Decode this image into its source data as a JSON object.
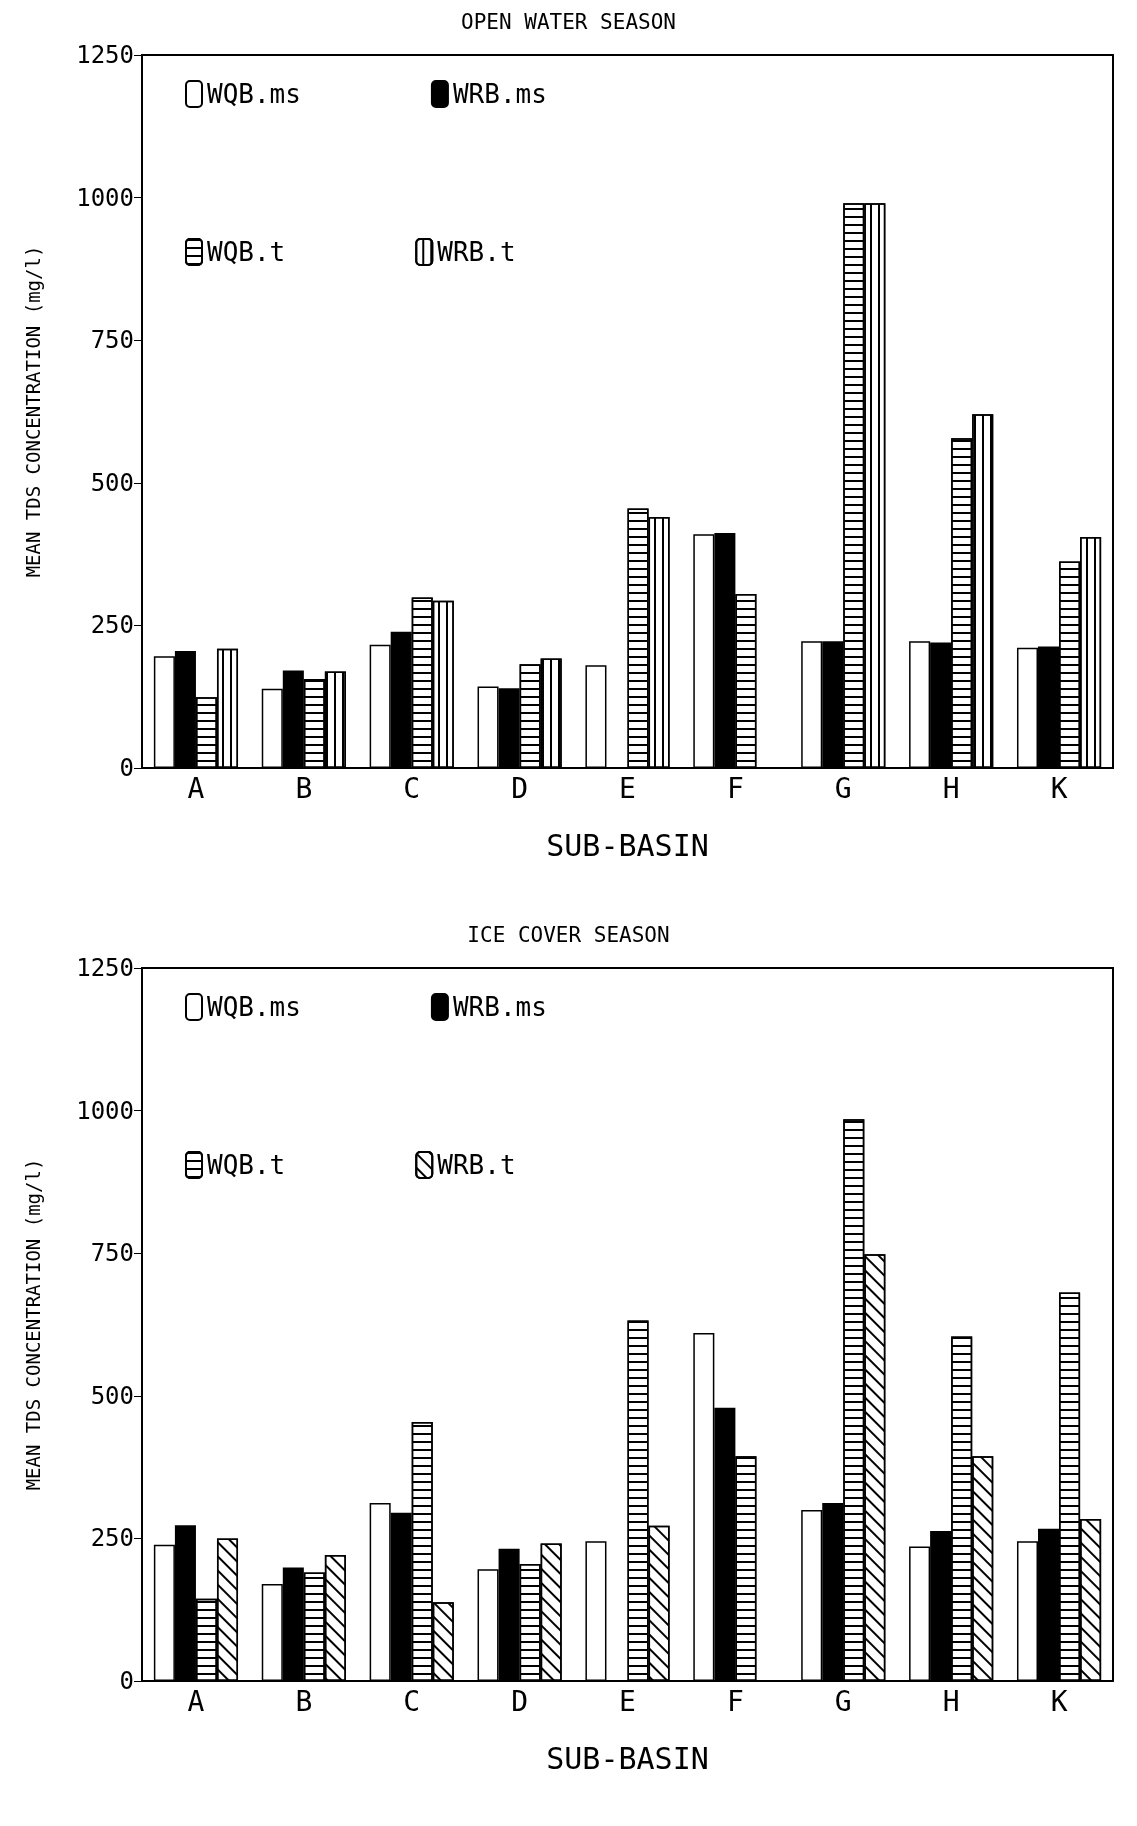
{
  "chart_data": [
    {
      "type": "bar",
      "title": "OPEN WATER SEASON",
      "xlabel": "SUB-BASIN",
      "ylabel": "MEAN TDS CONCENTRATION (mg/l)",
      "categories": [
        "A",
        "B",
        "C",
        "D",
        "E",
        "F",
        "G",
        "H",
        "K"
      ],
      "series": [
        {
          "name": "WQB.ms",
          "color": "#ffffff",
          "values": [
            196,
            139,
            216,
            143,
            180,
            410,
            222,
            222,
            211
          ]
        },
        {
          "name": "WRB.ms",
          "color": "#000000",
          "values": [
            205,
            171,
            239,
            140,
            null,
            412,
            222,
            220,
            213
          ]
        },
        {
          "name": "WQB.t",
          "color": "#ffffff",
          "values": [
            124,
            156,
            299,
            182,
            455,
            305,
            990,
            578,
            362
          ]
        },
        {
          "name": "WRB.t",
          "color": "#ffffff",
          "values": [
            209,
            169,
            293,
            192,
            440,
            null,
            990,
            620,
            405
          ]
        }
      ],
      "ylim": [
        0,
        1250
      ],
      "yticks": [
        0,
        250,
        500,
        750,
        1000,
        1250
      ],
      "grid": false,
      "legend": "top left"
    },
    {
      "type": "bar",
      "title": "ICE COVER SEASON",
      "xlabel": "SUB-BASIN",
      "ylabel": "MEAN TDS CONCENTRATION (mg/l)",
      "categories": [
        "A",
        "B",
        "C",
        "D",
        "E",
        "F",
        "G",
        "H",
        "K"
      ],
      "series": [
        {
          "name": "WQB.ms",
          "color": "#ffffff",
          "values": [
            239,
            170,
            312,
            196,
            245,
            610,
            300,
            236,
            245
          ]
        },
        {
          "name": "WRB.ms",
          "color": "#000000",
          "values": [
            273,
            199,
            295,
            232,
            null,
            479,
            312,
            263,
            267
          ]
        },
        {
          "name": "WQB.t",
          "color": "#ffffff",
          "values": [
            144,
            190,
            454,
            205,
            632,
            394,
            985,
            604,
            681
          ]
        },
        {
          "name": "WRB.t",
          "color": "#ffffff",
          "values": [
            250,
            221,
            138,
            241,
            272,
            null,
            748,
            394,
            284
          ]
        }
      ],
      "ylim": [
        0,
        1250
      ],
      "yticks": [
        0,
        250,
        500,
        750,
        1000,
        1250
      ],
      "grid": false,
      "legend": "top left"
    }
  ]
}
